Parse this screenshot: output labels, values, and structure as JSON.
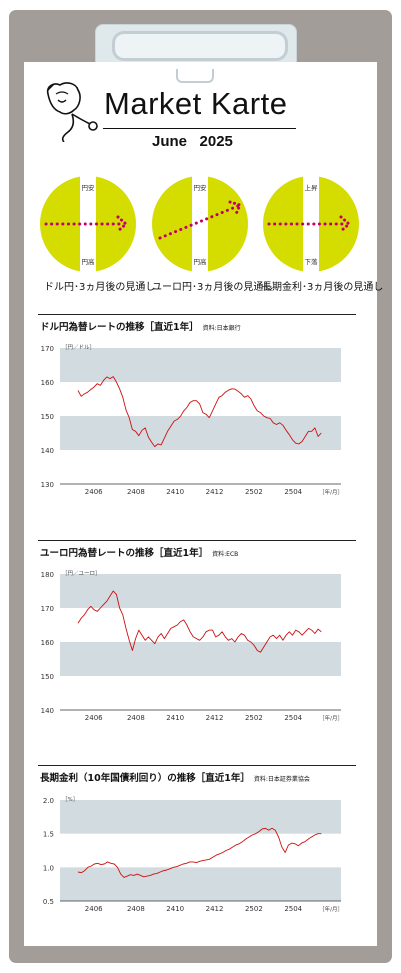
{
  "header": {
    "title": "Market Karte",
    "month": "June",
    "year": "2025"
  },
  "outlooks": [
    {
      "top_label": "円安",
      "bottom_label": "円高",
      "caption": "ドル円･3ヵ月後の見通し",
      "direction": "flat"
    },
    {
      "top_label": "円安",
      "bottom_label": "円高",
      "caption": "ユーロ円･3ヵ月後の見通し",
      "direction": "up"
    },
    {
      "top_label": "上昇",
      "bottom_label": "下落",
      "caption": "長期金利･3ヵ月後の見通し",
      "direction": "flat"
    }
  ],
  "colors": {
    "outlook_circle": "#d4dc00",
    "arrow_dots": "#c0006c",
    "band": "#d2dbe0",
    "line": "#cc1111",
    "board": "#a39d99"
  },
  "chart_data": [
    {
      "type": "line",
      "title": "ドル円為替レートの推移［直近1年］",
      "source": "資料:日本銀行",
      "unit_label": "［円／ドル］",
      "x_unit_label": "［年/月］",
      "ylim": [
        130,
        170
      ],
      "yticks": [
        "130",
        "140",
        "150",
        "160",
        "170"
      ],
      "bands": [
        [
          160,
          170
        ],
        [
          140,
          150
        ]
      ],
      "xticks": [
        "2406",
        "2408",
        "2410",
        "2412",
        "2502",
        "2504"
      ],
      "series": [
        {
          "values": [
            157.5,
            155.8,
            156.5,
            157.0,
            157.8,
            158.5,
            159.5,
            159.0,
            160.5,
            161.5,
            161.0,
            161.6,
            160.0,
            158.0,
            155.5,
            151.8,
            149.5,
            146.0,
            145.5,
            144.2,
            145.8,
            146.5,
            143.8,
            142.3,
            141.0,
            141.8,
            141.5,
            143.5,
            145.5,
            147.0,
            148.5,
            149.0,
            149.9,
            151.5,
            152.5,
            154.0,
            154.5,
            154.5,
            153.5,
            151.0,
            150.5,
            149.5,
            151.5,
            153.5,
            155.5,
            156.0,
            157.0,
            157.6,
            158.0,
            157.9,
            157.3,
            156.5,
            155.5,
            156.0,
            155.0,
            153.0,
            151.5,
            151.0,
            150.0,
            149.5,
            149.3,
            148.0,
            147.5,
            148.0,
            147.3,
            145.8,
            144.5,
            143.0,
            142.0,
            141.8,
            142.5,
            144.0,
            145.5,
            145.5,
            146.5,
            144.0,
            145.0
          ]
        }
      ]
    },
    {
      "type": "line",
      "title": "ユーロ円為替レートの推移［直近1年］",
      "source": "資料:ECB",
      "unit_label": "［円／ユーロ］",
      "x_unit_label": "［年/月］",
      "ylim": [
        140,
        180
      ],
      "yticks": [
        "140",
        "150",
        "160",
        "170",
        "180"
      ],
      "bands": [
        [
          170,
          180
        ],
        [
          150,
          160
        ]
      ],
      "xticks": [
        "2406",
        "2408",
        "2410",
        "2412",
        "2502",
        "2504"
      ],
      "series": [
        {
          "values": [
            165.5,
            167.0,
            168.0,
            169.5,
            170.5,
            169.5,
            169.0,
            170.0,
            171.0,
            172.0,
            173.5,
            175.0,
            174.0,
            170.0,
            168.0,
            164.0,
            160.5,
            157.5,
            161.0,
            163.5,
            162.0,
            160.5,
            161.5,
            160.5,
            159.5,
            161.5,
            162.5,
            161.0,
            162.5,
            164.0,
            164.5,
            165.0,
            166.0,
            166.5,
            165.0,
            163.0,
            161.5,
            161.0,
            160.5,
            161.5,
            163.0,
            163.5,
            163.5,
            161.5,
            162.0,
            163.0,
            161.5,
            160.5,
            161.0,
            160.0,
            161.5,
            162.5,
            162.0,
            160.5,
            160.0,
            159.0,
            157.5,
            157.0,
            158.5,
            160.0,
            161.5,
            162.0,
            161.0,
            162.0,
            160.5,
            162.0,
            163.0,
            162.0,
            163.5,
            163.0,
            162.0,
            163.0,
            164.0,
            163.5,
            162.5,
            163.8,
            163.0
          ]
        }
      ]
    },
    {
      "type": "line",
      "title": "長期金利（10年国債利回り）の推移［直近1年］",
      "source": "資料:日本証券業協会",
      "unit_label": "［%］",
      "x_unit_label": "［年/月］",
      "ylim": [
        0.5,
        2.0
      ],
      "yticks": [
        "0.5",
        "1.0",
        "1.5",
        "2.0"
      ],
      "bands": [
        [
          1.5,
          2.0
        ],
        [
          0.5,
          1.0
        ]
      ],
      "xticks": [
        "2406",
        "2408",
        "2410",
        "2412",
        "2502",
        "2504"
      ],
      "series": [
        {
          "values": [
            0.93,
            0.92,
            0.95,
            1.0,
            1.02,
            1.05,
            1.06,
            1.04,
            1.05,
            1.08,
            1.06,
            1.05,
            1.0,
            0.9,
            0.85,
            0.87,
            0.89,
            0.88,
            0.9,
            0.88,
            0.86,
            0.87,
            0.88,
            0.9,
            0.91,
            0.93,
            0.95,
            0.96,
            0.98,
            1.0,
            1.01,
            1.03,
            1.05,
            1.06,
            1.08,
            1.08,
            1.07,
            1.09,
            1.1,
            1.11,
            1.12,
            1.15,
            1.18,
            1.2,
            1.22,
            1.25,
            1.27,
            1.3,
            1.33,
            1.35,
            1.38,
            1.42,
            1.45,
            1.48,
            1.5,
            1.53,
            1.57,
            1.58,
            1.55,
            1.58,
            1.55,
            1.45,
            1.3,
            1.22,
            1.33,
            1.36,
            1.35,
            1.32,
            1.36,
            1.38,
            1.42,
            1.45,
            1.48,
            1.5,
            1.5
          ]
        }
      ]
    }
  ]
}
